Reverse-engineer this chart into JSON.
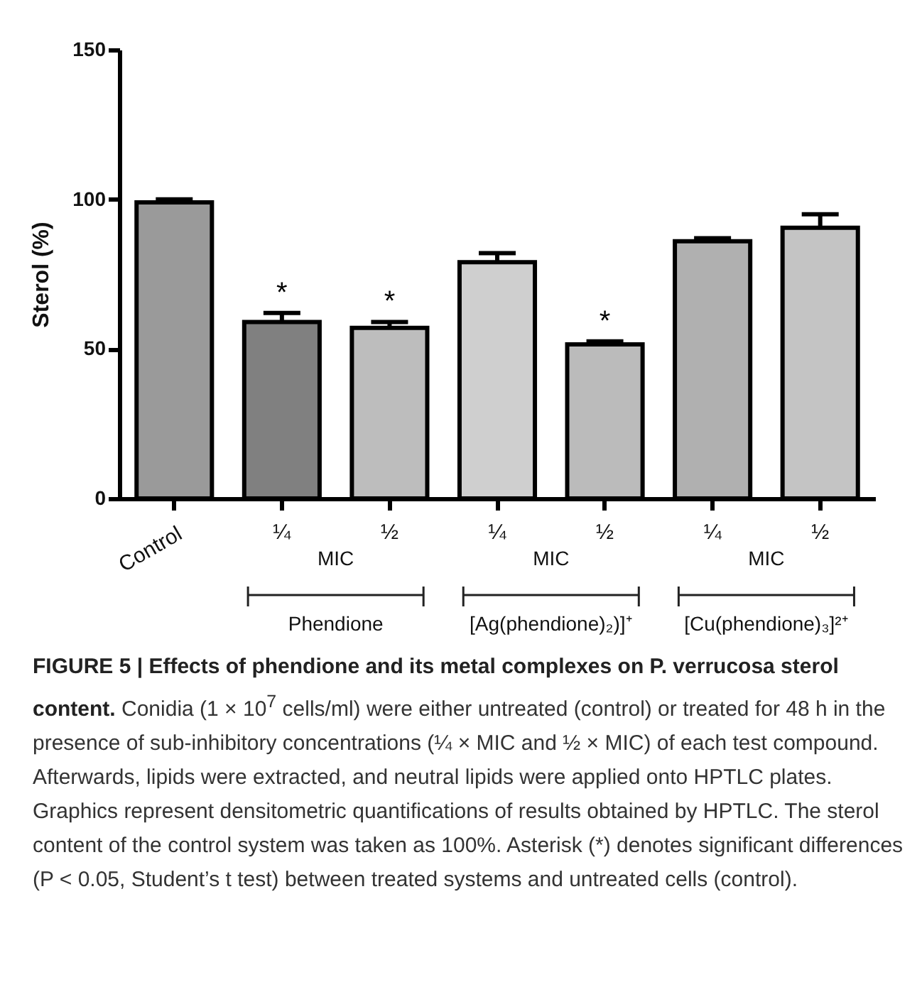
{
  "chart_data": {
    "type": "bar",
    "title": "FIGURE 5 | Effects of phendione and its metal complexes on P. verrucosa sterol content.",
    "ylabel": "Sterol (%)",
    "categories": [
      "Control",
      "¼",
      "½",
      "¼",
      "½",
      "¼",
      "½"
    ],
    "values": [
      99,
      59,
      57,
      79,
      51.5,
      86,
      90.5
    ],
    "colors": [
      "#9a9a9a",
      "#808080",
      "#bdbdbd",
      "#cfcfcf",
      "#bbbbbb",
      "#b0b0b0",
      "#c4c4c4"
    ],
    "errors": [
      [
        99,
        100
      ],
      [
        59,
        62
      ],
      [
        57,
        59
      ],
      [
        79,
        82
      ],
      [
        51.5,
        52.5
      ],
      [
        86,
        87
      ],
      [
        90.5,
        95
      ]
    ],
    "value_labels": [
      null,
      "*",
      "*",
      null,
      "*",
      null,
      null
    ],
    "ylim": [
      0,
      150
    ],
    "yticks": [
      0,
      50,
      100,
      150
    ],
    "annotations": [
      "MIC",
      "Phendione",
      "MIC",
      "[Ag(phendione)₂)]⁺",
      "MIC",
      "[Cu(phendione)₃]²⁺",
      "Conidia (1 × 10$^{7}$ cells/ml) were either untreated (control) or treated for 48 h in the presence of sub-inhibitory concentrations (¼ × MIC and ½ × MIC) of each test compound. Afterwards, lipids were extracted, and neutral lipids were applied onto HPTLC plates. Graphics represent densitometric quantifications of results obtained by HPTLC. The sterol content of the control system was taken as 100%. Asterisk (*) denotes significant differences (P < 0.05, Student’s t test) between treated systems and untreated cells (control)."
    ]
  }
}
